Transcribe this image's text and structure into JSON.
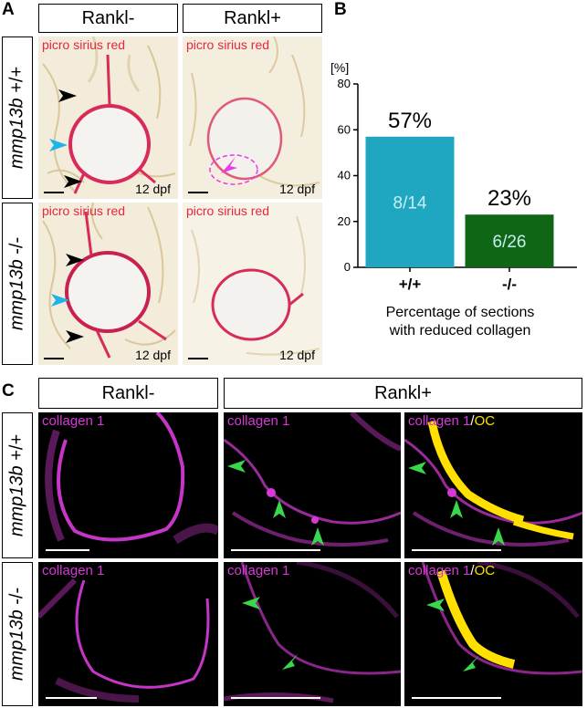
{
  "panels": {
    "A": "A",
    "B": "B",
    "C": "C"
  },
  "panelA": {
    "col_headers": [
      "Rankl-",
      "Rankl+"
    ],
    "row_headers": [
      {
        "gene": "mmp13b",
        "genotype": " +/+"
      },
      {
        "gene": "mmp13b",
        "genotype": " -/-"
      }
    ],
    "stain_label": "picro sirius red",
    "age_label": "12 dpf"
  },
  "panelB": {
    "y_unit": "[%]",
    "caption_line1": "Percentage of sections",
    "caption_line2": "with reduced collagen"
  },
  "chart_data": {
    "type": "bar",
    "categories": [
      "+/+",
      "-/-"
    ],
    "values": [
      57,
      23
    ],
    "value_labels": [
      "57%",
      "23%"
    ],
    "inner_labels": [
      "8/14",
      "6/26"
    ],
    "colors": [
      "#1fa6c1",
      "#0f6614"
    ],
    "ylim": [
      0,
      80
    ],
    "yticks": [
      0,
      20,
      40,
      60,
      80
    ],
    "ylabel": "[%]",
    "xlabel": "Percentage of sections with reduced collagen",
    "grid": false
  },
  "panelC": {
    "col_headers": [
      "Rankl-",
      "Rankl+"
    ],
    "row_headers": [
      {
        "gene": "mmp13b",
        "genotype": " +/+"
      },
      {
        "gene": "mmp13b",
        "genotype": " -/-"
      }
    ],
    "label_collagen": "collagen 1",
    "label_merge_a": "collagen 1",
    "label_merge_sep": "/",
    "label_merge_b": "OC"
  },
  "colors": {
    "arrow_black": "#000000",
    "arrow_blue": "#1eb4e6",
    "arrow_magenta": "#e83ce8",
    "arrow_green": "#38d84a",
    "collagen": "#d63ad6",
    "oc": "#ffe000"
  }
}
